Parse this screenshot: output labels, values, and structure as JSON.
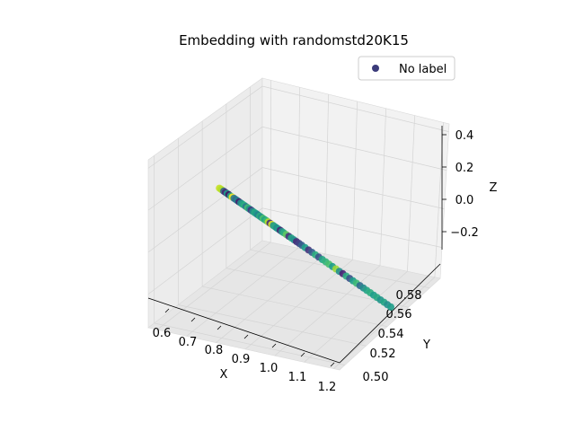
{
  "chart_data": {
    "type": "scatter",
    "projection": "3d",
    "title": "Embedding with randomstd20K15",
    "xlabel": "X",
    "ylabel": "Y",
    "zlabel": "Z",
    "xlim": [
      0.57,
      1.22
    ],
    "ylim": [
      0.495,
      0.59
    ],
    "zlim": [
      -0.36,
      0.44
    ],
    "x_ticks": [
      "0.6",
      "0.7",
      "0.8",
      "0.9",
      "1.0",
      "1.1",
      "1.2"
    ],
    "y_ticks": [
      "0.50",
      "0.52",
      "0.54",
      "0.56",
      "0.58"
    ],
    "z_ticks": [
      "−0.2",
      "0.0",
      "0.2",
      "0.4"
    ],
    "grid": true,
    "legend": {
      "position": "top-right",
      "entries": [
        "No label"
      ],
      "marker_color": "#3b3b7a"
    },
    "colormap": "viridis",
    "series": [
      {
        "name": "No label",
        "line": {
          "from": [
            0.588,
            0.55,
            0.07
          ],
          "to": [
            1.195,
            0.55,
            -0.32
          ]
        },
        "points": [
          {
            "t": 0.0,
            "c": 0.92
          },
          {
            "t": 0.008,
            "c": 0.9
          },
          {
            "t": 0.015,
            "c": 0.88
          },
          {
            "t": 0.025,
            "c": 0.3
          },
          {
            "t": 0.035,
            "c": 0.1
          },
          {
            "t": 0.045,
            "c": 0.55
          },
          {
            "t": 0.055,
            "c": 0.05
          },
          {
            "t": 0.065,
            "c": 0.6
          },
          {
            "t": 0.075,
            "c": 1.0
          },
          {
            "t": 0.085,
            "c": 0.4
          },
          {
            "t": 0.095,
            "c": 0.35
          },
          {
            "t": 0.105,
            "c": 0.45
          },
          {
            "t": 0.115,
            "c": 0.08
          },
          {
            "t": 0.125,
            "c": 0.5
          },
          {
            "t": 0.135,
            "c": 0.58
          },
          {
            "t": 0.145,
            "c": 0.62
          },
          {
            "t": 0.155,
            "c": 0.4
          },
          {
            "t": 0.165,
            "c": 0.7
          },
          {
            "t": 0.175,
            "c": 0.52
          },
          {
            "t": 0.185,
            "c": 0.15
          },
          {
            "t": 0.195,
            "c": 0.48
          },
          {
            "t": 0.205,
            "c": 0.6
          },
          {
            "t": 0.215,
            "c": 0.55
          },
          {
            "t": 0.225,
            "c": 0.45
          },
          {
            "t": 0.235,
            "c": 0.62
          },
          {
            "t": 0.245,
            "c": 0.5
          },
          {
            "t": 0.255,
            "c": 0.72
          },
          {
            "t": 0.265,
            "c": 0.58
          },
          {
            "t": 0.275,
            "c": 0.68
          },
          {
            "t": 0.285,
            "c": 0.9
          },
          {
            "t": 0.295,
            "c": 0.12
          },
          {
            "t": 0.305,
            "c": 0.95
          },
          {
            "t": 0.315,
            "c": 0.52
          },
          {
            "t": 0.325,
            "c": 0.6
          },
          {
            "t": 0.335,
            "c": 0.48
          },
          {
            "t": 0.345,
            "c": 0.55
          },
          {
            "t": 0.355,
            "c": 0.1
          },
          {
            "t": 0.365,
            "c": 0.5
          },
          {
            "t": 0.375,
            "c": 0.62
          },
          {
            "t": 0.39,
            "c": 0.75
          },
          {
            "t": 0.405,
            "c": 0.15
          },
          {
            "t": 0.42,
            "c": 0.58
          },
          {
            "t": 0.435,
            "c": 0.5
          },
          {
            "t": 0.45,
            "c": 0.12
          },
          {
            "t": 0.465,
            "c": 0.2
          },
          {
            "t": 0.48,
            "c": 0.3
          },
          {
            "t": 0.5,
            "c": 0.55
          },
          {
            "t": 0.52,
            "c": 0.15
          },
          {
            "t": 0.54,
            "c": 0.3
          },
          {
            "t": 0.56,
            "c": 0.62
          },
          {
            "t": 0.58,
            "c": 0.25
          },
          {
            "t": 0.6,
            "c": 0.58
          },
          {
            "t": 0.62,
            "c": 0.65
          },
          {
            "t": 0.64,
            "c": 0.7
          },
          {
            "t": 0.66,
            "c": 0.55
          },
          {
            "t": 0.68,
            "c": 0.85
          },
          {
            "t": 0.7,
            "c": 0.5
          },
          {
            "t": 0.72,
            "c": 0.1
          },
          {
            "t": 0.74,
            "c": 0.62
          },
          {
            "t": 0.76,
            "c": 0.25
          },
          {
            "t": 0.78,
            "c": 0.55
          },
          {
            "t": 0.8,
            "c": 0.68
          },
          {
            "t": 0.82,
            "c": 0.35
          },
          {
            "t": 0.84,
            "c": 0.48
          },
          {
            "t": 0.86,
            "c": 0.58
          },
          {
            "t": 0.88,
            "c": 0.62
          },
          {
            "t": 0.9,
            "c": 0.55
          },
          {
            "t": 0.92,
            "c": 0.6
          },
          {
            "t": 0.94,
            "c": 0.52
          },
          {
            "t": 0.96,
            "c": 0.58
          },
          {
            "t": 0.98,
            "c": 0.5
          },
          {
            "t": 1.0,
            "c": 0.55
          }
        ]
      }
    ]
  }
}
